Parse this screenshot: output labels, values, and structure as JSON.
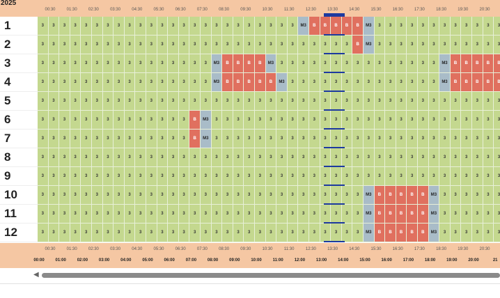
{
  "header": {
    "year_fragment": "2025"
  },
  "rows": [
    "1",
    "2",
    "3",
    "4",
    "5",
    "6",
    "7",
    "8",
    "9",
    "10",
    "11",
    "12"
  ],
  "half_hour_labels": [
    "00:30",
    "01:30",
    "02:30",
    "03:30",
    "04:30",
    "05:30",
    "06:30",
    "07:30",
    "08:30",
    "09:30",
    "10:30",
    "11:30",
    "12:30",
    "13:30",
    "14:30",
    "15:30",
    "16:30",
    "17:30",
    "18:30",
    "19:30",
    "20:30"
  ],
  "hour_labels": [
    "00:00",
    "01:00",
    "02:00",
    "03:00",
    "04:00",
    "05:00",
    "06:00",
    "07:00",
    "08:00",
    "09:00",
    "10:00",
    "11:00",
    "12:00",
    "13:00",
    "14:00",
    "15:00",
    "16:00",
    "17:00",
    "18:00",
    "19:00",
    "20:00",
    "21"
  ],
  "top_hour_fragments": [
    "00:00",
    "01:00",
    "02:00",
    "03:00",
    "04:00",
    "05:00",
    "06:00",
    "07:00",
    "08:00",
    "09:00",
    "10:00",
    "11:00",
    "12:00",
    "13:00",
    "14:00",
    "15:00",
    "16:00",
    "17:00",
    "18:00",
    "19:00",
    "20:00",
    "21"
  ],
  "cell_text": {
    "ready": "3",
    "busy": "B",
    "maintenance": "M3",
    "now": "---"
  },
  "colors": {
    "ready": "#c4d88f",
    "busy": "#e0705f",
    "maintenance": "#a9bcc8",
    "now": "#1d3aa0",
    "header": "#f5c7a3"
  },
  "slots_per_row": 43,
  "special_cells": [
    {
      "row": 0,
      "from": 24,
      "to": 24,
      "state": "M"
    },
    {
      "row": 0,
      "from": 25,
      "to": 29,
      "state": "B"
    },
    {
      "row": 0,
      "from": 30,
      "to": 30,
      "state": "M"
    },
    {
      "row": 1,
      "from": 29,
      "to": 29,
      "state": "B"
    },
    {
      "row": 1,
      "from": 30,
      "to": 30,
      "state": "M"
    },
    {
      "row": 2,
      "from": 16,
      "to": 16,
      "state": "M"
    },
    {
      "row": 2,
      "from": 17,
      "to": 20,
      "state": "B"
    },
    {
      "row": 2,
      "from": 21,
      "to": 21,
      "state": "M"
    },
    {
      "row": 2,
      "from": 37,
      "to": 37,
      "state": "M"
    },
    {
      "row": 2,
      "from": 38,
      "to": 42,
      "state": "B"
    },
    {
      "row": 3,
      "from": 16,
      "to": 16,
      "state": "M"
    },
    {
      "row": 3,
      "from": 17,
      "to": 21,
      "state": "B"
    },
    {
      "row": 3,
      "from": 22,
      "to": 22,
      "state": "M"
    },
    {
      "row": 3,
      "from": 37,
      "to": 37,
      "state": "M"
    },
    {
      "row": 3,
      "from": 38,
      "to": 42,
      "state": "B"
    },
    {
      "row": 5,
      "from": 14,
      "to": 14,
      "state": "B"
    },
    {
      "row": 5,
      "from": 15,
      "to": 15,
      "state": "M"
    },
    {
      "row": 6,
      "from": 14,
      "to": 14,
      "state": "B"
    },
    {
      "row": 6,
      "from": 15,
      "to": 15,
      "state": "M"
    },
    {
      "row": 9,
      "from": 30,
      "to": 30,
      "state": "M"
    },
    {
      "row": 9,
      "from": 31,
      "to": 35,
      "state": "B"
    },
    {
      "row": 9,
      "from": 36,
      "to": 36,
      "state": "M"
    },
    {
      "row": 10,
      "from": 30,
      "to": 30,
      "state": "M"
    },
    {
      "row": 10,
      "from": 31,
      "to": 35,
      "state": "B"
    },
    {
      "row": 10,
      "from": 36,
      "to": 36,
      "state": "M"
    },
    {
      "row": 11,
      "from": 30,
      "to": 30,
      "state": "M"
    },
    {
      "row": 11,
      "from": 31,
      "to": 35,
      "state": "B"
    },
    {
      "row": 11,
      "from": 36,
      "to": 36,
      "state": "M"
    }
  ]
}
